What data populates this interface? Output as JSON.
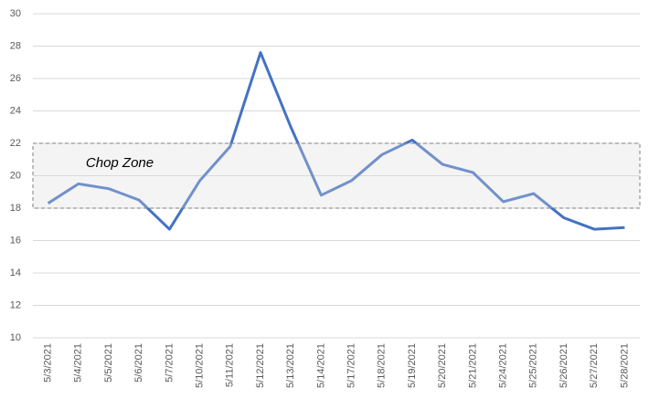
{
  "chart_data": {
    "type": "line",
    "categories": [
      "5/3/2021",
      "5/4/2021",
      "5/5/2021",
      "5/6/2021",
      "5/7/2021",
      "5/10/2021",
      "5/11/2021",
      "5/12/2021",
      "5/13/2021",
      "5/14/2021",
      "5/17/2021",
      "5/18/2021",
      "5/19/2021",
      "5/20/2021",
      "5/21/2021",
      "5/24/2021",
      "5/25/2021",
      "5/26/2021",
      "5/27/2021",
      "5/28/2021"
    ],
    "values": [
      18.3,
      19.5,
      19.2,
      18.5,
      16.7,
      19.7,
      21.8,
      27.6,
      23.0,
      18.8,
      19.7,
      21.3,
      22.2,
      20.7,
      20.2,
      18.4,
      18.9,
      17.4,
      16.7,
      16.8
    ],
    "color": "#4472c4",
    "ylim": [
      10,
      30
    ],
    "yticks": [
      10,
      12,
      14,
      16,
      18,
      20,
      22,
      24,
      26,
      28,
      30
    ],
    "grid": true,
    "bands": [
      {
        "from": 18,
        "to": 22,
        "label": "Chop Zone"
      }
    ]
  }
}
